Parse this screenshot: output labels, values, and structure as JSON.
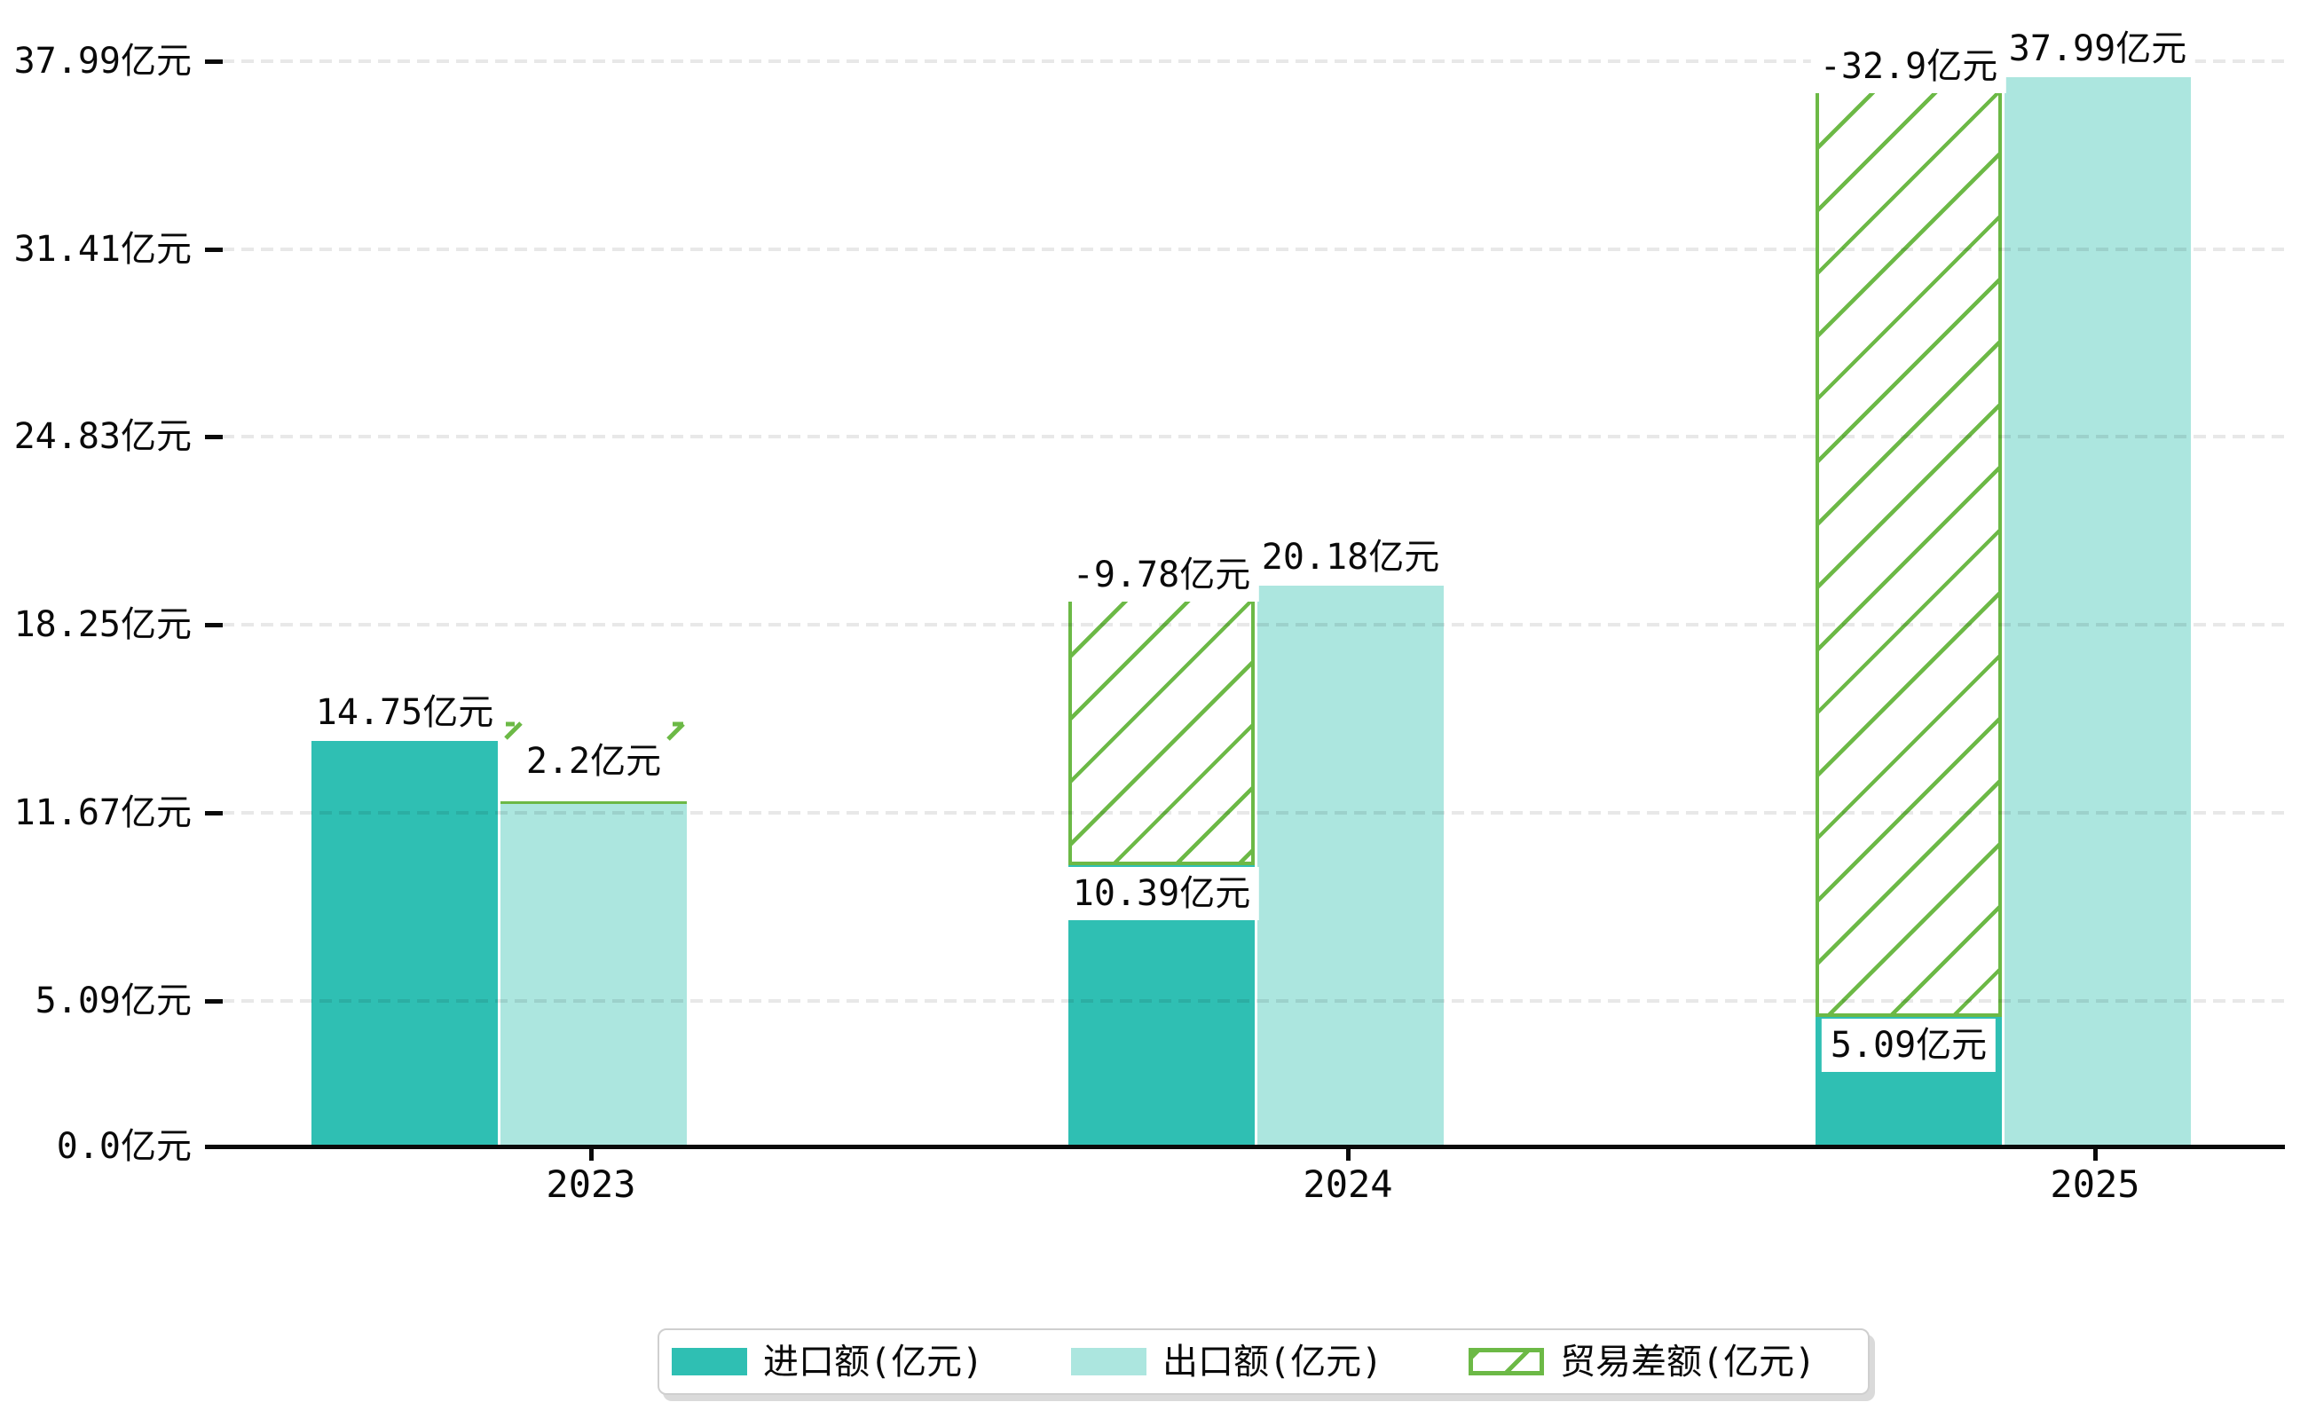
{
  "chart_data": {
    "type": "bar",
    "title": "",
    "categories": [
      "2023",
      "2024",
      "2025"
    ],
    "series": [
      {
        "name": "进口额(亿元)",
        "values": [
          14.75,
          10.39,
          5.09
        ],
        "color": "#2FBFB3",
        "style": "solid",
        "labels": [
          "14.75亿元",
          "10.39亿元",
          "5.09亿元"
        ]
      },
      {
        "name": "出口额(亿元)",
        "values": [
          12.55,
          20.18,
          37.99
        ],
        "color": "#ACE6DF",
        "style": "solid",
        "labels": [
          "",
          "20.18亿元",
          "37.99亿元"
        ]
      },
      {
        "name": "贸易差额(亿元)",
        "values": [
          2.2,
          -9.78,
          -32.9
        ],
        "color": "#6CB946",
        "style": "hatched",
        "labels": [
          "2.2亿元",
          "-9.78亿元",
          "-32.9亿元"
        ]
      }
    ],
    "yticks": {
      "values": [
        0,
        5.09,
        11.67,
        18.25,
        24.83,
        31.41,
        37.99
      ],
      "labels": [
        "0.0亿元",
        "5.09亿元",
        "11.67亿元",
        "18.25亿元",
        "24.83亿元",
        "31.41亿元",
        "37.99亿元"
      ]
    },
    "ylim": [
      0,
      38.6
    ],
    "xlabel": "",
    "ylabel": "",
    "grid": "dashed-horizontal-over-bars",
    "legend_position": "bottom-center"
  },
  "legend": {
    "items": [
      {
        "label": "进口额(亿元)",
        "swatch": "import-solid-swatch"
      },
      {
        "label": "出口额(亿元)",
        "swatch": "export-solid-swatch"
      },
      {
        "label": "贸易差额(亿元)",
        "swatch": "balance-hatch-swatch"
      }
    ]
  },
  "colors": {
    "import": "#2FBFB3",
    "export": "#ACE6DF",
    "balance_hatch": "#6CB946",
    "grid": "rgba(0,0,0,0.09)",
    "axis": "#0a0a0a",
    "legend_border": "#cfcfcf"
  }
}
